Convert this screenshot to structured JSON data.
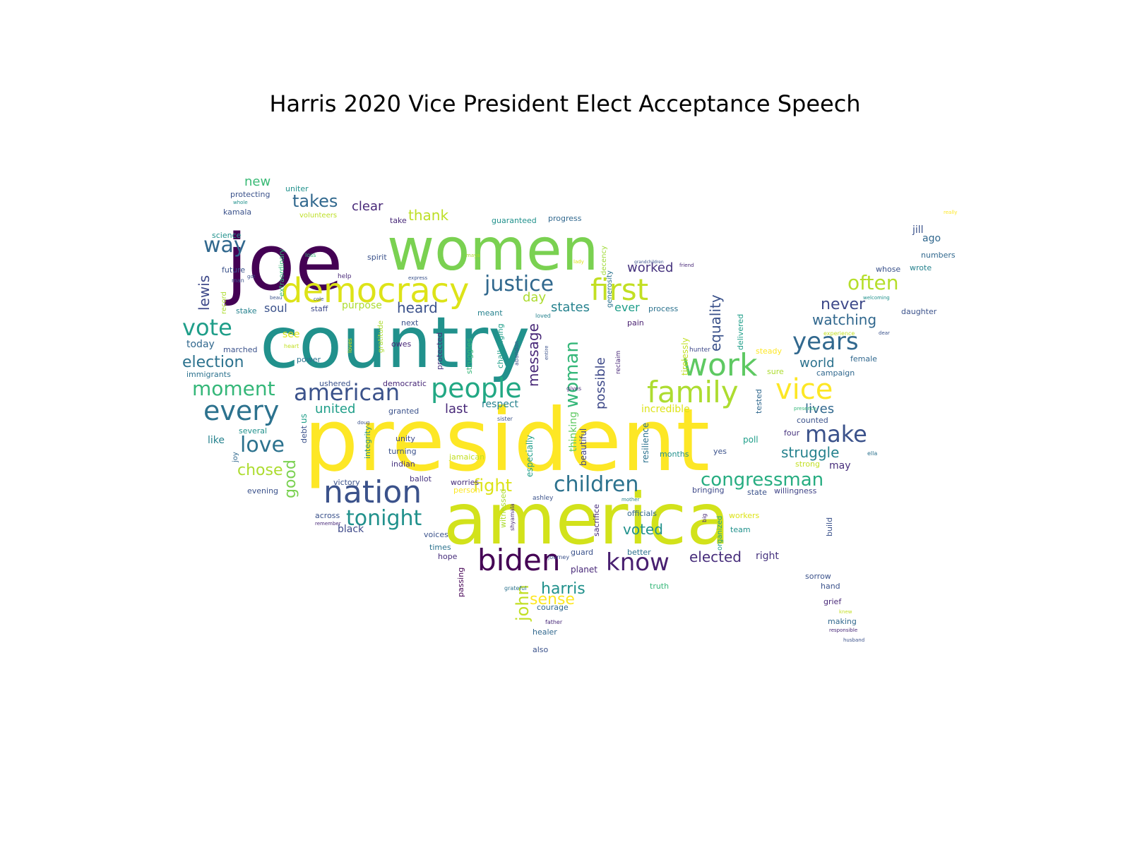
{
  "title": "Harris 2020 Vice President Elect Acceptance Speech",
  "words": [
    {
      "text": "president",
      "color": "#fde725"
    },
    {
      "text": "country",
      "color": "#21918c"
    },
    {
      "text": "america",
      "color": "#d2e21b"
    },
    {
      "text": "joe",
      "color": "#440154"
    },
    {
      "text": "women",
      "color": "#7ad151"
    },
    {
      "text": "democracy",
      "color": "#dde318"
    },
    {
      "text": "biden",
      "color": "#440154"
    },
    {
      "text": "nation",
      "color": "#3b528b"
    },
    {
      "text": "people",
      "color": "#22a884"
    },
    {
      "text": "family",
      "color": "#addc30"
    },
    {
      "text": "vice",
      "color": "#fde725"
    },
    {
      "text": "first",
      "color": "#c2df23"
    },
    {
      "text": "work",
      "color": "#5ec962"
    },
    {
      "text": "every",
      "color": "#2c728e"
    },
    {
      "text": "american",
      "color": "#3b528b"
    },
    {
      "text": "justice",
      "color": "#31688e"
    },
    {
      "text": "children",
      "color": "#2c728e"
    },
    {
      "text": "know",
      "color": "#481f70"
    },
    {
      "text": "tonight",
      "color": "#21918c"
    },
    {
      "text": "congressman",
      "color": "#27ad81"
    },
    {
      "text": "years",
      "color": "#31688e"
    },
    {
      "text": "woman",
      "color": "#35b779"
    },
    {
      "text": "moment",
      "color": "#35b779"
    },
    {
      "text": "vote",
      "color": "#1f9e89"
    },
    {
      "text": "love",
      "color": "#2c728e"
    },
    {
      "text": "make",
      "color": "#3b528b"
    },
    {
      "text": "often",
      "color": "#b5de2b"
    },
    {
      "text": "way",
      "color": "#31688e"
    },
    {
      "text": "takes",
      "color": "#31688e"
    },
    {
      "text": "election",
      "color": "#2c728e"
    },
    {
      "text": "fight",
      "color": "#dde318"
    },
    {
      "text": "message",
      "color": "#482878"
    },
    {
      "text": "watching",
      "color": "#31688e"
    },
    {
      "text": "harris",
      "color": "#21918c"
    },
    {
      "text": "never",
      "color": "#3e4989"
    },
    {
      "text": "equality",
      "color": "#3b528b"
    },
    {
      "text": "john",
      "color": "#c2df23"
    },
    {
      "text": "sense",
      "color": "#fde725"
    },
    {
      "text": "good",
      "color": "#7ad151"
    },
    {
      "text": "chose",
      "color": "#addc30"
    },
    {
      "text": "lewis",
      "color": "#3e4989"
    },
    {
      "text": "struggle",
      "color": "#26828e"
    },
    {
      "text": "worked",
      "color": "#46337e"
    },
    {
      "text": "elected",
      "color": "#472d7b"
    },
    {
      "text": "states",
      "color": "#26828e"
    },
    {
      "text": "heard",
      "color": "#3b528b"
    },
    {
      "text": "united",
      "color": "#1f9e89"
    },
    {
      "text": "voted",
      "color": "#21918c"
    },
    {
      "text": "world",
      "color": "#2c728e"
    },
    {
      "text": "possible",
      "color": "#3e4989"
    },
    {
      "text": "clear",
      "color": "#482878"
    },
    {
      "text": "thank",
      "color": "#bddf26"
    },
    {
      "text": "new",
      "color": "#3aba76"
    },
    {
      "text": "soul",
      "color": "#3b528b"
    },
    {
      "text": "lives",
      "color": "#31688e"
    },
    {
      "text": "last",
      "color": "#482878"
    },
    {
      "text": "day",
      "color": "#addc30"
    },
    {
      "text": "ever",
      "color": "#1f9e89"
    },
    {
      "text": "black",
      "color": "#3e4989"
    },
    {
      "text": "jill",
      "color": "#3b528b"
    },
    {
      "text": "ago",
      "color": "#31688e"
    },
    {
      "text": "purpose",
      "color": "#addc30"
    },
    {
      "text": "respect",
      "color": "#26828e"
    },
    {
      "text": "right",
      "color": "#46337e"
    },
    {
      "text": "incredible",
      "color": "#dde318"
    },
    {
      "text": "thinking",
      "color": "#5ec962"
    },
    {
      "text": "beautiful",
      "color": "#414487"
    },
    {
      "text": "especially",
      "color": "#1f9e89"
    },
    {
      "text": "resilience",
      "color": "#2c728e"
    },
    {
      "text": "may",
      "color": "#472d7b"
    },
    {
      "text": "today",
      "color": "#31688e"
    },
    {
      "text": "marched",
      "color": "#3b528b"
    },
    {
      "text": "immigrants",
      "color": "#2c728e"
    },
    {
      "text": "see",
      "color": "#dde318"
    },
    {
      "text": "owes",
      "color": "#482878"
    },
    {
      "text": "staff",
      "color": "#3e4989"
    },
    {
      "text": "meant",
      "color": "#26828e"
    },
    {
      "text": "pain",
      "color": "#481f70"
    },
    {
      "text": "process",
      "color": "#2c728e"
    },
    {
      "text": "steady",
      "color": "#fde725"
    },
    {
      "text": "delivered",
      "color": "#1f9e89"
    },
    {
      "text": "tirelessly",
      "color": "#c2df23"
    },
    {
      "text": "reclaim",
      "color": "#482878"
    },
    {
      "text": "generosity",
      "color": "#2c728e"
    },
    {
      "text": "decency",
      "color": "#a0da39"
    },
    {
      "text": "tested",
      "color": "#31688e"
    },
    {
      "text": "hunter",
      "color": "#3e4989"
    },
    {
      "text": "sure",
      "color": "#addc30"
    },
    {
      "text": "female",
      "color": "#31688e"
    },
    {
      "text": "campaign",
      "color": "#31688e"
    },
    {
      "text": "counted",
      "color": "#3b528b"
    },
    {
      "text": "four",
      "color": "#46337e"
    },
    {
      "text": "poll",
      "color": "#1f9e89"
    },
    {
      "text": "yes",
      "color": "#3b528b"
    },
    {
      "text": "months",
      "color": "#21918c"
    },
    {
      "text": "strong",
      "color": "#c2df23"
    },
    {
      "text": "ella",
      "color": "#2c728e"
    },
    {
      "text": "willingness",
      "color": "#414487"
    },
    {
      "text": "state",
      "color": "#3b528b"
    },
    {
      "text": "bringing",
      "color": "#3e4989"
    },
    {
      "text": "big",
      "color": "#482878"
    },
    {
      "text": "organized",
      "color": "#1f9e89"
    },
    {
      "text": "officials",
      "color": "#31688e"
    },
    {
      "text": "workers",
      "color": "#dde318"
    },
    {
      "text": "team",
      "color": "#21918c"
    },
    {
      "text": "build",
      "color": "#3b528b"
    },
    {
      "text": "better",
      "color": "#2c728e"
    },
    {
      "text": "truth",
      "color": "#35b779"
    },
    {
      "text": "guard",
      "color": "#3b528b"
    },
    {
      "text": "planet",
      "color": "#482878"
    },
    {
      "text": "sacrifice",
      "color": "#472d7b"
    },
    {
      "text": "courage",
      "color": "#31688e"
    },
    {
      "text": "healer",
      "color": "#31688e"
    },
    {
      "text": "also",
      "color": "#3b528b"
    },
    {
      "text": "father",
      "color": "#482878"
    },
    {
      "text": "grateful",
      "color": "#2c728e"
    },
    {
      "text": "passing",
      "color": "#440154"
    },
    {
      "text": "hope",
      "color": "#472d7b"
    },
    {
      "text": "times",
      "color": "#2c728e"
    },
    {
      "text": "voices",
      "color": "#3b528b"
    },
    {
      "text": "witnessed",
      "color": "#addc30"
    },
    {
      "text": "shyamala",
      "color": "#482878"
    },
    {
      "text": "journey",
      "color": "#3b528b"
    },
    {
      "text": "ashley",
      "color": "#3b528b"
    },
    {
      "text": "mother",
      "color": "#26828e"
    },
    {
      "text": "person",
      "color": "#fde725"
    },
    {
      "text": "worries",
      "color": "#472d7b"
    },
    {
      "text": "ballot",
      "color": "#46337e"
    },
    {
      "text": "victory",
      "color": "#3b528b"
    },
    {
      "text": "indian",
      "color": "#46337e"
    },
    {
      "text": "turning",
      "color": "#3b528b"
    },
    {
      "text": "unity",
      "color": "#3e4989"
    },
    {
      "text": "jamaican",
      "color": "#c2df23"
    },
    {
      "text": "integrity",
      "color": "#21918c"
    },
    {
      "text": "debt",
      "color": "#3b528b"
    },
    {
      "text": "us",
      "color": "#1f9e89"
    },
    {
      "text": "joy",
      "color": "#31688e"
    },
    {
      "text": "like",
      "color": "#26828e"
    },
    {
      "text": "several",
      "color": "#21918c"
    },
    {
      "text": "evening",
      "color": "#3b528b"
    },
    {
      "text": "across",
      "color": "#3b528b"
    },
    {
      "text": "remember",
      "color": "#482878"
    },
    {
      "text": "granted",
      "color": "#3b528b"
    },
    {
      "text": "sister",
      "color": "#3b528b"
    },
    {
      "text": "gives",
      "color": "#482878"
    },
    {
      "text": "ushered",
      "color": "#3b528b"
    },
    {
      "text": "democratic",
      "color": "#482878"
    },
    {
      "text": "doug",
      "color": "#3b528b"
    },
    {
      "text": "power",
      "color": "#2c728e"
    },
    {
      "text": "next",
      "color": "#3b528b"
    },
    {
      "text": "gratitude",
      "color": "#addc30"
    },
    {
      "text": "loves",
      "color": "#dde318"
    },
    {
      "text": "heart",
      "color": "#c2df23"
    },
    {
      "text": "protected",
      "color": "#46337e"
    },
    {
      "text": "struggles",
      "color": "#35b779"
    },
    {
      "text": "challenging",
      "color": "#1f9e89"
    },
    {
      "text": "abandon",
      "color": "#3b528b"
    },
    {
      "text": "entire",
      "color": "#3b528b"
    },
    {
      "text": "loved",
      "color": "#26828e"
    },
    {
      "text": "spirit",
      "color": "#3b528b"
    },
    {
      "text": "help",
      "color": "#482878"
    },
    {
      "text": "express",
      "color": "#3b528b"
    },
    {
      "text": "lady",
      "color": "#dde318"
    },
    {
      "text": "maya",
      "color": "#addc30"
    },
    {
      "text": "loss",
      "color": "#35b779"
    },
    {
      "text": "grandchildren",
      "color": "#3b528b"
    },
    {
      "text": "friend",
      "color": "#482878"
    },
    {
      "text": "stake",
      "color": "#26828e"
    },
    {
      "text": "record",
      "color": "#addc30"
    },
    {
      "text": "beau",
      "color": "#3b528b"
    },
    {
      "text": "cole",
      "color": "#3b528b"
    },
    {
      "text": "got",
      "color": "#3b528b"
    },
    {
      "text": "man",
      "color": "#3b528b"
    },
    {
      "text": "future",
      "color": "#3b528b"
    },
    {
      "text": "extraordinary",
      "color": "#35b779"
    },
    {
      "text": "science",
      "color": "#21918c"
    },
    {
      "text": "kamala",
      "color": "#3b528b"
    },
    {
      "text": "whole",
      "color": "#21918c"
    },
    {
      "text": "protecting",
      "color": "#3b528b"
    },
    {
      "text": "uniter",
      "color": "#21918c"
    },
    {
      "text": "volunteers",
      "color": "#bddf26"
    },
    {
      "text": "take",
      "color": "#482878"
    },
    {
      "text": "guaranteed",
      "color": "#21918c"
    },
    {
      "text": "progress",
      "color": "#31688e"
    },
    {
      "text": "really",
      "color": "#fde725"
    },
    {
      "text": "numbers",
      "color": "#31688e"
    },
    {
      "text": "whose",
      "color": "#3b528b"
    },
    {
      "text": "wrote",
      "color": "#26828e"
    },
    {
      "text": "welcoming",
      "color": "#21918c"
    },
    {
      "text": "daughter",
      "color": "#3b528b"
    },
    {
      "text": "dear",
      "color": "#3b528b"
    },
    {
      "text": "experience",
      "color": "#c2df23"
    },
    {
      "text": "presence",
      "color": "#35b779"
    },
    {
      "text": "sorrow",
      "color": "#3b528b"
    },
    {
      "text": "hand",
      "color": "#3b528b"
    },
    {
      "text": "grief",
      "color": "#482878"
    },
    {
      "text": "knew",
      "color": "#c2df23"
    },
    {
      "text": "making",
      "color": "#31688e"
    },
    {
      "text": "responsible",
      "color": "#482878"
    },
    {
      "text": "husband",
      "color": "#3b528b"
    }
  ]
}
